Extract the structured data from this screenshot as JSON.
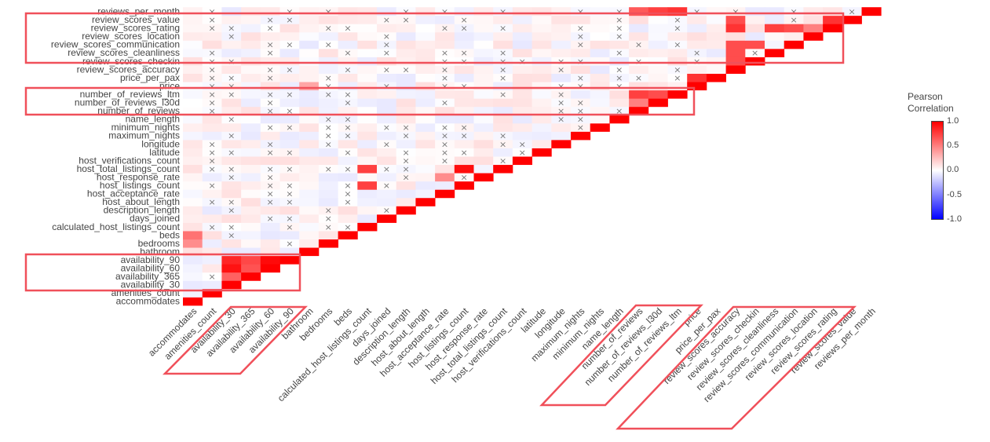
{
  "chart_data": {
    "type": "heatmap",
    "triangle": "lower",
    "colorscale": {
      "min_color": "#0000ff",
      "mid_color": "#ffffff",
      "max_color": "#ff0000",
      "zmin": -1.0,
      "zmax": 1.0
    },
    "colorbar": {
      "title_line1": "Pearson",
      "title_line2": "Correlation",
      "ticks": [
        "1.0",
        "0.5",
        "0.0",
        "-0.5",
        "-1.0"
      ]
    },
    "insignificant_marker": "×",
    "variables": [
      "accommodates",
      "amenities_count",
      "availability_30",
      "availability_365",
      "availability_60",
      "availability_90",
      "bathroom",
      "bedrooms",
      "beds",
      "calculated_host_listings_count",
      "days_joined",
      "description_length",
      "host_about_length",
      "host_acceptance_rate",
      "host_listings_count",
      "host_response_rate",
      "host_total_listings_count",
      "host_verifications_count",
      "latitude",
      "longitude",
      "maximum_nights",
      "minimum_nights",
      "name_length",
      "number_of_reviews",
      "number_of_reviews_l30d",
      "number_of_reviews_ltm",
      "price",
      "price_per_pax",
      "review_scores_accuracy",
      "review_scores_checkin",
      "review_scores_cleanliness",
      "review_scores_communication",
      "review_scores_location",
      "review_scores_rating",
      "review_scores_value",
      "reviews_per_month"
    ],
    "notable_correlations": [
      {
        "a": "availability_30",
        "b": "availability_60",
        "r": 0.93
      },
      {
        "a": "availability_30",
        "b": "availability_90",
        "r": 0.85
      },
      {
        "a": "availability_60",
        "b": "availability_90",
        "r": 0.96
      },
      {
        "a": "availability_30",
        "b": "availability_365",
        "r": 0.62
      },
      {
        "a": "availability_60",
        "b": "availability_365",
        "r": 0.68
      },
      {
        "a": "availability_90",
        "b": "availability_365",
        "r": 0.72
      },
      {
        "a": "accommodates",
        "b": "beds",
        "r": 0.55
      },
      {
        "a": "accommodates",
        "b": "bedrooms",
        "r": 0.45
      },
      {
        "a": "host_listings_count",
        "b": "host_total_listings_count",
        "r": 0.95
      },
      {
        "a": "calculated_host_listings_count",
        "b": "host_listings_count",
        "r": 0.75
      },
      {
        "a": "calculated_host_listings_count",
        "b": "host_total_listings_count",
        "r": 0.75
      },
      {
        "a": "number_of_reviews",
        "b": "number_of_reviews_ltm",
        "r": 0.75
      },
      {
        "a": "number_of_reviews_ltm",
        "b": "number_of_reviews_l30d",
        "r": 0.7
      },
      {
        "a": "number_of_reviews",
        "b": "number_of_reviews_l30d",
        "r": 0.5
      },
      {
        "a": "number_of_reviews_ltm",
        "b": "reviews_per_month",
        "r": 0.8
      },
      {
        "a": "number_of_reviews_l30d",
        "b": "reviews_per_month",
        "r": 0.75
      },
      {
        "a": "number_of_reviews",
        "b": "reviews_per_month",
        "r": 0.65
      },
      {
        "a": "review_scores_accuracy",
        "b": "review_scores_rating",
        "r": 0.8
      },
      {
        "a": "review_scores_accuracy",
        "b": "review_scores_value",
        "r": 0.7
      },
      {
        "a": "review_scores_accuracy",
        "b": "review_scores_cleanliness",
        "r": 0.7
      },
      {
        "a": "review_scores_accuracy",
        "b": "review_scores_communication",
        "r": 0.7
      },
      {
        "a": "review_scores_accuracy",
        "b": "review_scores_checkin",
        "r": 0.7
      },
      {
        "a": "review_scores_checkin",
        "b": "review_scores_communication",
        "r": 0.7
      },
      {
        "a": "review_scores_cleanliness",
        "b": "review_scores_rating",
        "r": 0.75
      },
      {
        "a": "review_scores_communication",
        "b": "review_scores_rating",
        "r": 0.7
      },
      {
        "a": "review_scores_rating",
        "b": "review_scores_value",
        "r": 0.8
      },
      {
        "a": "review_scores_location",
        "b": "review_scores_rating",
        "r": 0.5
      },
      {
        "a": "price",
        "b": "price_per_pax",
        "r": 0.8
      },
      {
        "a": "bathroom",
        "b": "price",
        "r": 0.35
      },
      {
        "a": "host_acceptance_rate",
        "b": "host_response_rate",
        "r": 0.45
      }
    ],
    "highlight_groups": [
      [
        "review_scores_accuracy",
        "review_scores_checkin",
        "review_scores_cleanliness",
        "review_scores_communication",
        "review_scores_location",
        "review_scores_rating",
        "review_scores_value"
      ],
      [
        "number_of_reviews",
        "number_of_reviews_l30d",
        "number_of_reviews_ltm"
      ],
      [
        "availability_30",
        "availability_365",
        "availability_60",
        "availability_90"
      ]
    ]
  }
}
